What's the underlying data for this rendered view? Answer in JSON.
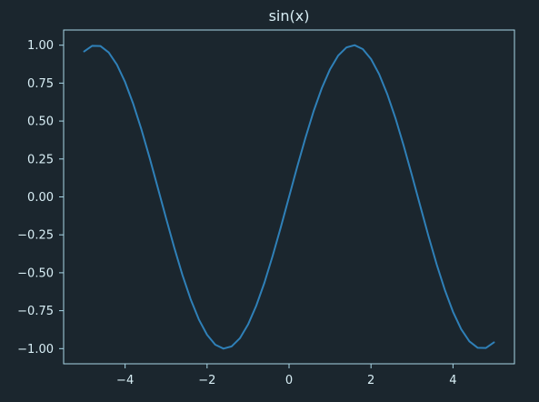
{
  "colors": {
    "background": "#1b262e",
    "axes": "#a9d7e7",
    "text": "#d8eef5",
    "line": "#2f80b8"
  },
  "chart_data": {
    "type": "line",
    "title": "sin(x)",
    "xlabel": "",
    "ylabel": "",
    "xlim": [
      -5.5,
      5.5
    ],
    "ylim": [
      -1.1,
      1.1
    ],
    "xticks": [
      -4,
      -2,
      0,
      2,
      4
    ],
    "xtick_labels": [
      "−4",
      "−2",
      "0",
      "2",
      "4"
    ],
    "yticks": [
      1.0,
      0.75,
      0.5,
      0.25,
      0.0,
      -0.25,
      -0.5,
      -0.75,
      -1.0
    ],
    "ytick_labels": [
      "1.00",
      "0.75",
      "0.50",
      "0.25",
      "0.00",
      "−0.25",
      "−0.50",
      "−0.75",
      "−1.00"
    ],
    "grid": false,
    "series": [
      {
        "x": [
          -5.0,
          -4.8,
          -4.6,
          -4.4,
          -4.2,
          -4.0,
          -3.8,
          -3.6,
          -3.4,
          -3.2,
          -3.0,
          -2.8,
          -2.6,
          -2.4,
          -2.2,
          -2.0,
          -1.8,
          -1.6,
          -1.4,
          -1.2,
          -1.0,
          -0.8,
          -0.6,
          -0.4,
          -0.2,
          0.0,
          0.2,
          0.4,
          0.6,
          0.8,
          1.0,
          1.2,
          1.4,
          1.6,
          1.8,
          2.0,
          2.2,
          2.4,
          2.6,
          2.8,
          3.0,
          3.2,
          3.4,
          3.6,
          3.8,
          4.0,
          4.2,
          4.4,
          4.6,
          4.8,
          5.0
        ],
        "y": [
          0.959,
          0.996,
          0.994,
          0.952,
          0.872,
          0.757,
          0.612,
          0.443,
          0.256,
          0.058,
          -0.141,
          -0.335,
          -0.516,
          -0.675,
          -0.808,
          -0.909,
          -0.974,
          -1.0,
          -0.985,
          -0.932,
          -0.841,
          -0.717,
          -0.565,
          -0.389,
          -0.199,
          0.0,
          0.199,
          0.389,
          0.565,
          0.717,
          0.841,
          0.932,
          0.985,
          1.0,
          0.974,
          0.909,
          0.808,
          0.675,
          0.516,
          0.335,
          0.141,
          -0.058,
          -0.256,
          -0.443,
          -0.612,
          -0.757,
          -0.872,
          -0.952,
          -0.994,
          -0.996,
          -0.959
        ]
      }
    ]
  }
}
